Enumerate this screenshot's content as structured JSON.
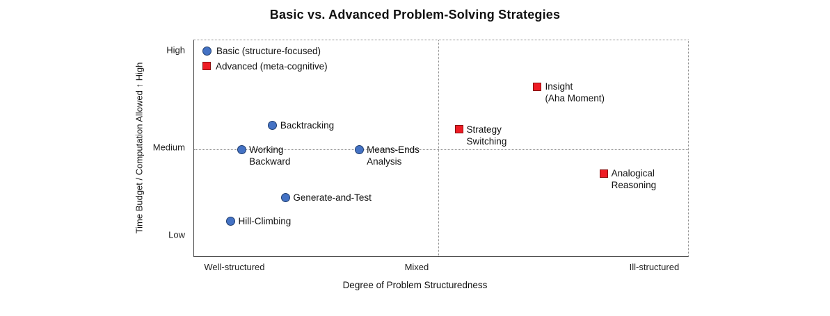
{
  "page": {
    "background": "#ffffff"
  },
  "chart_data": {
    "type": "scatter",
    "title": "Basic vs. Advanced Problem-Solving Strategies",
    "xlabel": "Degree of Problem Structuredness",
    "ylabel": "Time Budget / Computation Allowed ↑ High",
    "x_range": [
      0,
      1
    ],
    "y_range": [
      0,
      1
    ],
    "grid": "partial-dotted",
    "legend_position": "upper-left-inside",
    "x_ticks": [
      {
        "label": "Well-structured",
        "pos": 0.083
      },
      {
        "label": "Mixed",
        "pos": 0.452
      },
      {
        "label": "Ill-structured",
        "pos": 0.933
      }
    ],
    "y_ticks": [
      {
        "label": "High",
        "pos": 0.952
      },
      {
        "label": "Medium",
        "pos": 0.502
      },
      {
        "label": "Low",
        "pos": 0.096
      }
    ],
    "gridlines": {
      "vertical": [
        0.494
      ],
      "horizontal": [
        0.495
      ]
    },
    "series": [
      {
        "name": "Basic (structure-focused)",
        "marker": "circle",
        "fill": "#4472c4",
        "stroke": "#1f3d6e",
        "points": [
          {
            "label_lines": [
              "Backtracking"
            ],
            "x": 0.159,
            "y": 0.607
          },
          {
            "label_lines": [
              "Working",
              "Backward"
            ],
            "x": 0.096,
            "y": 0.495
          },
          {
            "label_lines": [
              "Means-Ends",
              "Analysis"
            ],
            "x": 0.334,
            "y": 0.495
          },
          {
            "label_lines": [
              "Generate-and-Test"
            ],
            "x": 0.185,
            "y": 0.272
          },
          {
            "label_lines": [
              "Hill-Climbing"
            ],
            "x": 0.074,
            "y": 0.163
          }
        ]
      },
      {
        "name": "Advanced (meta-cognitive)",
        "marker": "square",
        "fill": "#ee1c25",
        "stroke": "#8a0f0f",
        "points": [
          {
            "label_lines": [
              "Insight",
              "(Aha Moment)"
            ],
            "x": 0.695,
            "y": 0.786
          },
          {
            "label_lines": [
              "Strategy",
              "Switching"
            ],
            "x": 0.536,
            "y": 0.588
          },
          {
            "label_lines": [
              "Analogical",
              "Reasoning"
            ],
            "x": 0.829,
            "y": 0.383
          }
        ]
      }
    ]
  }
}
